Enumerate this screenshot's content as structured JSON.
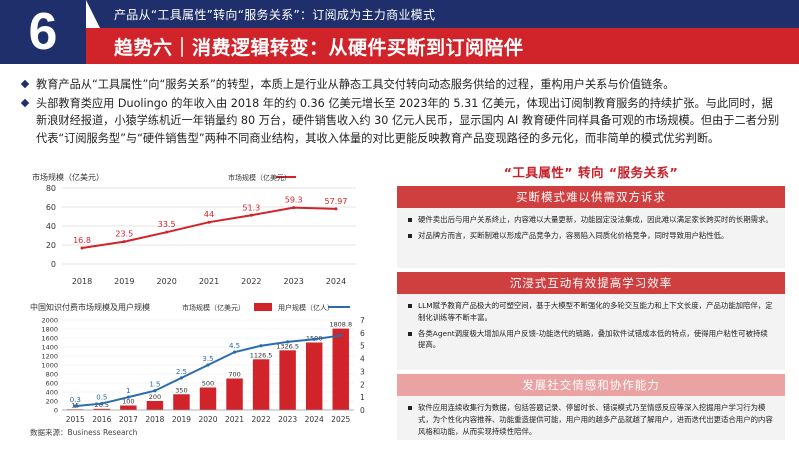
{
  "header": {
    "number": "6",
    "subtitle": "产品从“工具属性”转向“服务关系”：订阅成为主力商业模式",
    "title": "趋势六｜消费逻辑转变：从硬件买断到订阅陪伴"
  },
  "bullets": [
    "教育产品从“工具属性”向“服务关系”的转型，本质上是行业从静态工具交付转向动态服务供给的过程，重构用户关系与价值链条。",
    "头部教育类应用 Duolingo 的年收入由 2018 年的约 0.36 亿美元增长至 2023年的 5.31 亿美元，体现出订阅制教育服务的持续扩张。与此同时，据新浪财经报道，小猿学练机近一年销量约 80 万台，硬件销售收入约 30 亿元人民币，显示国内 AI 教育硬件同样具备可观的市场规模。但由于二者分别代表“订阅服务型”与“硬件销售型”两种不同商业结构，其收入体量的对比更能反映教育产品变现路径的多元化，而非简单的模式优劣判断。"
  ],
  "chart_data": [
    {
      "type": "line",
      "title": "",
      "ylabel": "市场规模（亿美元）",
      "legend": "市场规模（亿美元）",
      "legend_position": "top-right",
      "categories": [
        "2018",
        "2019",
        "2020",
        "2021",
        "2022",
        "2023",
        "2024"
      ],
      "values": [
        16.8,
        23.5,
        33.5,
        44,
        51.3,
        59.3,
        57.97
      ],
      "labels": [
        "16.8",
        "23.5",
        "33.5",
        "44",
        "51.3",
        "59.3",
        "57.97"
      ],
      "ylim": [
        0,
        80
      ],
      "yticks": [
        "0",
        "20",
        "40",
        "60",
        "80"
      ],
      "grid": true,
      "color": "#d0232a"
    },
    {
      "type": "bar",
      "title": "中国知识付费市场规模及用户规模",
      "categories": [
        "2015",
        "2016",
        "2017",
        "2018",
        "2019",
        "2020",
        "2021",
        "2022",
        "2023",
        "2024",
        "2025"
      ],
      "series": [
        {
          "name": "市场规模（亿美元）",
          "type": "bar",
          "values": [
            15,
            26.5,
            100,
            200,
            350,
            500,
            700,
            1126.5,
            1326.5,
            1500,
            1808.8
          ],
          "labels": [
            "15",
            "26.5",
            "100",
            "200",
            "350",
            "500",
            "700",
            "1126.5",
            "1326.5",
            "1500",
            "1808.8"
          ],
          "color": "#d0232a"
        },
        {
          "name": "用户规模（亿人）",
          "type": "line",
          "values": [
            0.3,
            0.5,
            1,
            1.5,
            2.5,
            3.5,
            4.5,
            5,
            5.3,
            5.5,
            5.8
          ],
          "labels": [
            "0.3",
            "0.5",
            "1",
            "1.5",
            "2.5",
            "3.5",
            "4.5",
            "",
            "",
            "",
            ""
          ],
          "color": "#2b6cb0"
        }
      ],
      "ylim_left": [
        0,
        2000
      ],
      "yticks_left": [
        "0",
        "200",
        "400",
        "600",
        "800",
        "1000",
        "1200",
        "1400",
        "1600",
        "1800",
        "2000"
      ],
      "ylim_right": [
        0,
        7
      ],
      "yticks_right": [
        "0",
        "1",
        "2",
        "3",
        "4",
        "5",
        "6",
        "7"
      ],
      "legend_position": "top"
    }
  ],
  "source": "数据来源：Business Research",
  "right": {
    "title": "“工具属性” 转向 “服务关系”",
    "sections": [
      {
        "heading": "买断模式难以供需双方诉求",
        "items": [
          "硬件卖出后与用户关系终止，内容难以大量更新，功能固定没法集成，因此难以满足家长跨买时的长期需求。",
          "对品牌方而言，买断制难以形成产品竞争力，容易陷入同质化价格竞争，同时导致用户粘性低。"
        ]
      },
      {
        "heading": "沉浸式互动有效提高学习效率",
        "items": [
          "LLM赋予教育产品极大的可塑空间，基于大模型不断强化的多轮交互能力和上下文长度，产品功能加陪伴，定制化训练等不断丰富。",
          "各类Agent调度极大增加从用户反馈-功能迭代的链路，叠加软件试错成本低的特点，使得用户粘性可被持续提高。"
        ]
      },
      {
        "heading": "发展社交情感和协作能力",
        "items": [
          "软件应用连续收集行为数据，包括答题记录、停留时长、错误模式乃至情感反应等深入挖掘用户学习行为模式，为个性化内容推荐、功能重造提供可能，用户用的越多产品就越了解用户，进而迭代出更适合用户的内容风格和功能，从而实现持续性陪伴。"
        ]
      }
    ]
  }
}
